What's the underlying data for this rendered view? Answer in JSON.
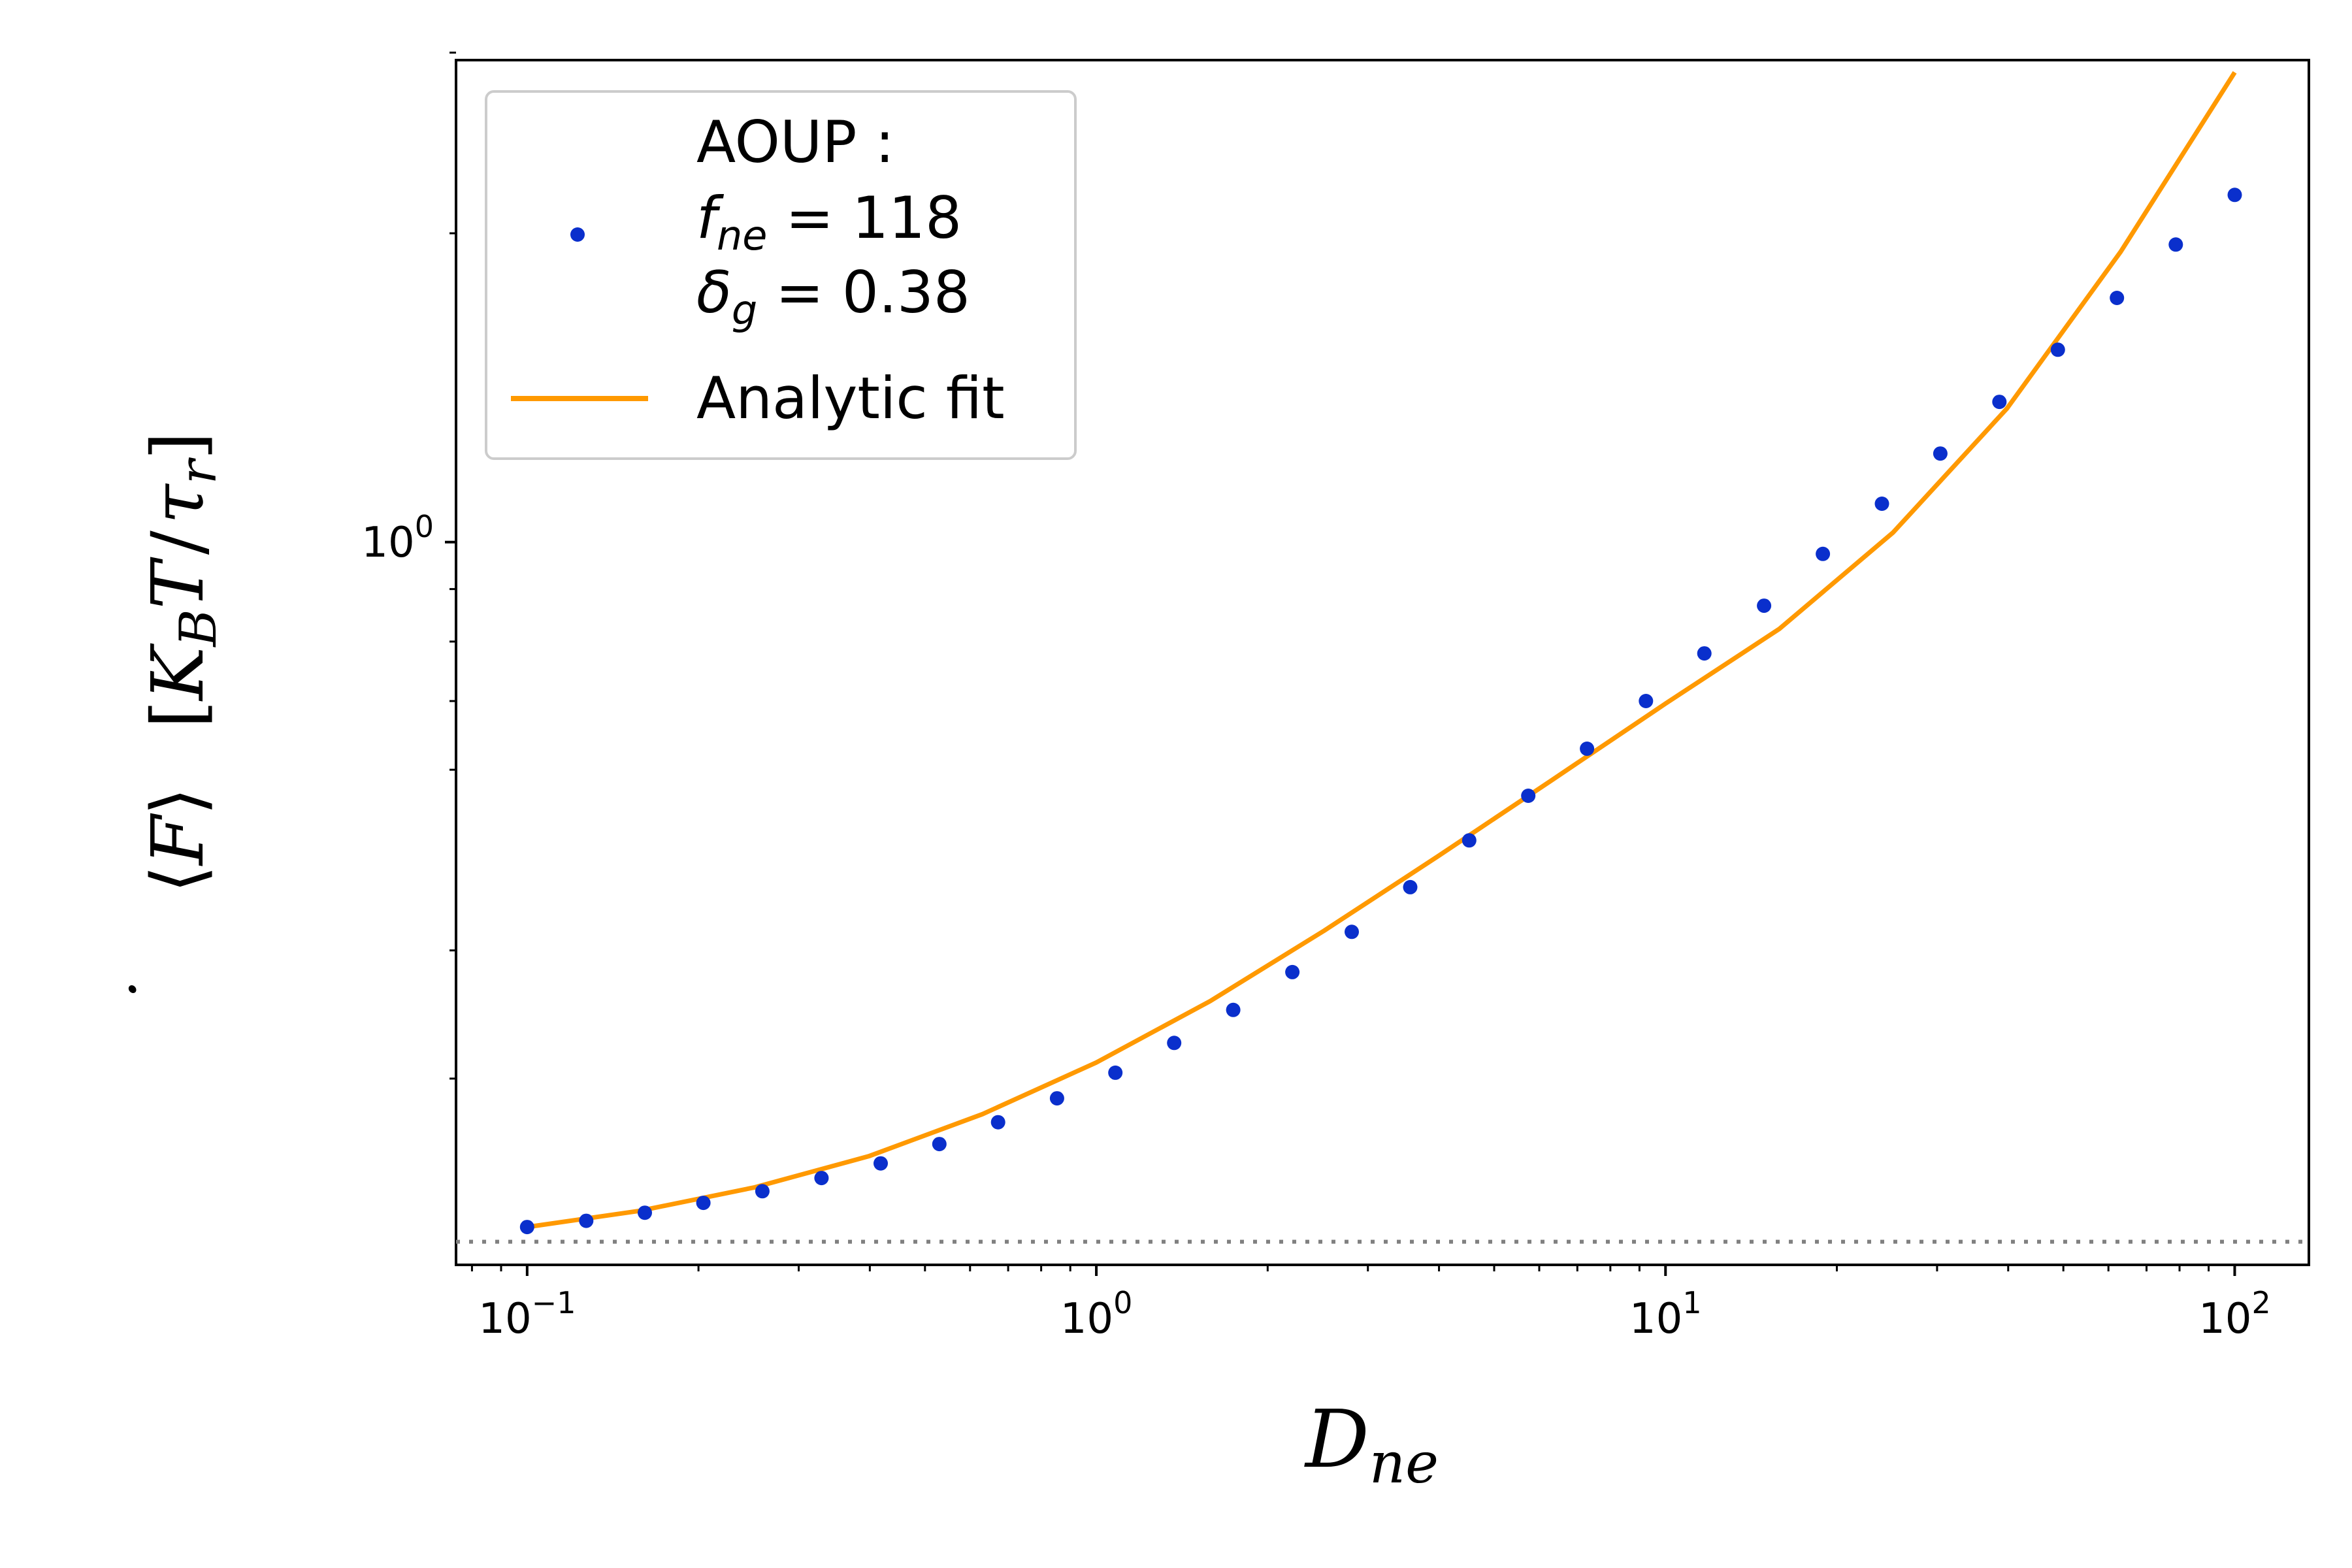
{
  "chart_data": {
    "type": "scatter",
    "x_scale": "log",
    "y_scale": "log",
    "xlim": [
      0.075,
      135
    ],
    "ylim": [
      0.1975,
      2.95
    ],
    "xlabel": "D_ne",
    "ylabel": "⟨Ḟ⟩  [K_B T / τ_r]",
    "x_ticks": [
      {
        "value": 0.1,
        "base": "10",
        "exp": "−1"
      },
      {
        "value": 1,
        "base": "10",
        "exp": "0"
      },
      {
        "value": 10,
        "base": "10",
        "exp": "1"
      },
      {
        "value": 100,
        "base": "10",
        "exp": "2"
      }
    ],
    "y_ticks": [
      {
        "value": 1,
        "base": "10",
        "exp": "0"
      }
    ],
    "y_minor_ticks": [
      0.3,
      0.4,
      0.6,
      0.7,
      0.8,
      0.9,
      2,
      3
    ],
    "reference_line": {
      "y": 0.208,
      "style": "dotted",
      "color": "#808080"
    },
    "series": [
      {
        "name": "AOUP : f_ne = 118 δ_g = 0.38",
        "kind": "scatter",
        "color": "#0a2fcc",
        "x": [
          0.1,
          0.127,
          0.161,
          0.204,
          0.259,
          0.329,
          0.418,
          0.53,
          0.672,
          0.853,
          1.08,
          1.37,
          1.74,
          2.21,
          2.81,
          3.56,
          4.52,
          5.74,
          7.28,
          9.24,
          11.7,
          14.9,
          18.9,
          24.0,
          30.4,
          38.6,
          48.9,
          62.1,
          78.8,
          100
        ],
        "y": [
          0.215,
          0.218,
          0.222,
          0.227,
          0.233,
          0.24,
          0.248,
          0.259,
          0.272,
          0.287,
          0.304,
          0.325,
          0.35,
          0.381,
          0.417,
          0.461,
          0.512,
          0.566,
          0.629,
          0.7,
          0.779,
          0.867,
          0.974,
          1.09,
          1.22,
          1.37,
          1.54,
          1.73,
          1.95,
          2.18
        ]
      },
      {
        "name": "Analytic fit",
        "kind": "line",
        "color": "#ff9900",
        "x": [
          0.1,
          0.158,
          0.251,
          0.398,
          0.631,
          1.0,
          1.585,
          2.512,
          3.981,
          6.31,
          10.0,
          15.85,
          25.12,
          39.81,
          63.1,
          100
        ],
        "y": [
          0.215,
          0.223,
          0.235,
          0.252,
          0.277,
          0.311,
          0.357,
          0.418,
          0.494,
          0.586,
          0.696,
          0.823,
          1.022,
          1.35,
          1.92,
          2.87
        ]
      }
    ],
    "legend": {
      "position": "top-left",
      "entries": [
        {
          "lines": [
            "AOUP :",
            "f_ne = 118",
            "δ_g = 0.38"
          ],
          "marker": "dot",
          "color": "#0a2fcc"
        },
        {
          "lines": [
            "Analytic fit"
          ],
          "marker": "line",
          "color": "#ff9900"
        }
      ]
    }
  }
}
